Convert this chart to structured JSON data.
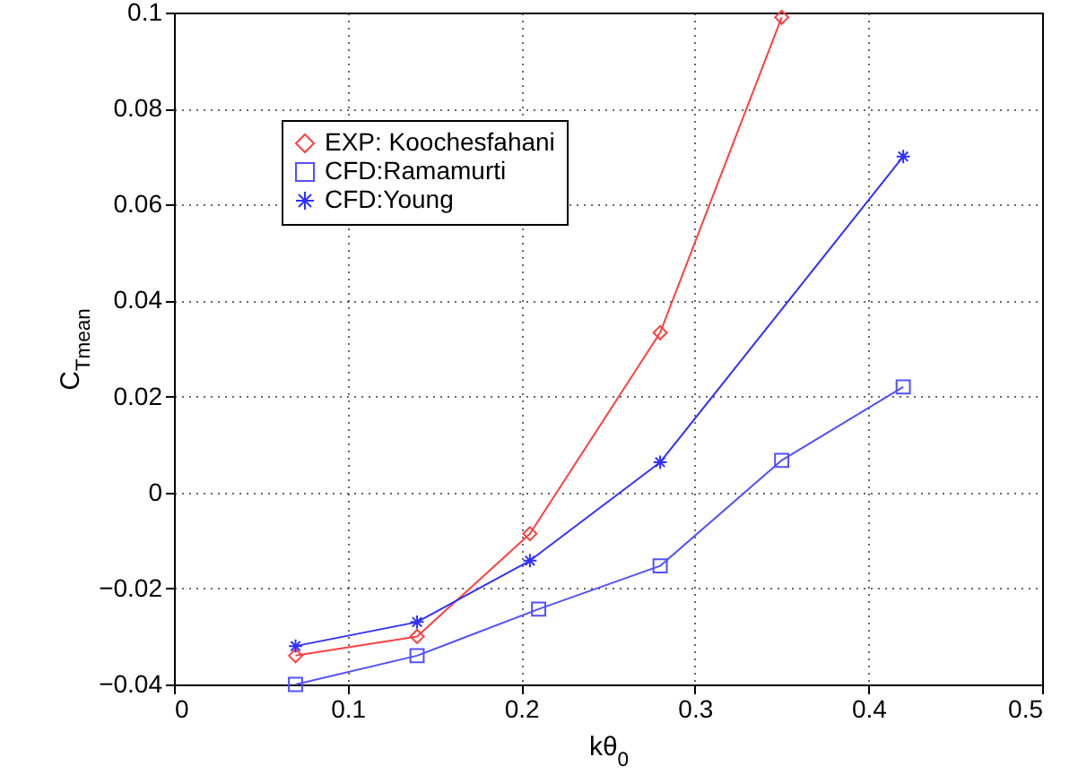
{
  "chart_data": {
    "type": "line",
    "xlabel": "kθ$_{0}$",
    "ylabel": "C$_{Tmean}$",
    "xlim": [
      0,
      0.5
    ],
    "xticks": [
      0,
      0.1,
      0.2,
      0.3,
      0.4,
      0.5
    ],
    "ylim": [
      -0.04,
      0.1
    ],
    "yticks": [
      -0.04,
      -0.02,
      0,
      0.02,
      0.04,
      0.06,
      0.08,
      0.1
    ],
    "grid": true,
    "legend": "top left",
    "series": [
      {
        "name": "EXP: Koochesfahani",
        "color": "#ff4040",
        "marker": "diamond",
        "x": [
          0.07,
          0.14,
          0.205,
          0.28,
          0.35
        ],
        "values": [
          -0.034,
          -0.03,
          -0.0086,
          0.0333,
          0.099
        ]
      },
      {
        "name": "CFD:Ramamurti",
        "color": "#5050ff",
        "marker": "square",
        "x": [
          0.07,
          0.14,
          0.21,
          0.28,
          0.35,
          0.42
        ],
        "values": [
          -0.04,
          -0.034,
          -0.0243,
          -0.0153,
          0.0067,
          0.022
        ]
      },
      {
        "name": "CFD:Young",
        "color": "#3030ff",
        "marker": "cross",
        "x": [
          0.07,
          0.14,
          0.205,
          0.28,
          0.42
        ],
        "values": [
          -0.032,
          -0.027,
          -0.0142,
          0.0063,
          0.07
        ]
      }
    ]
  }
}
